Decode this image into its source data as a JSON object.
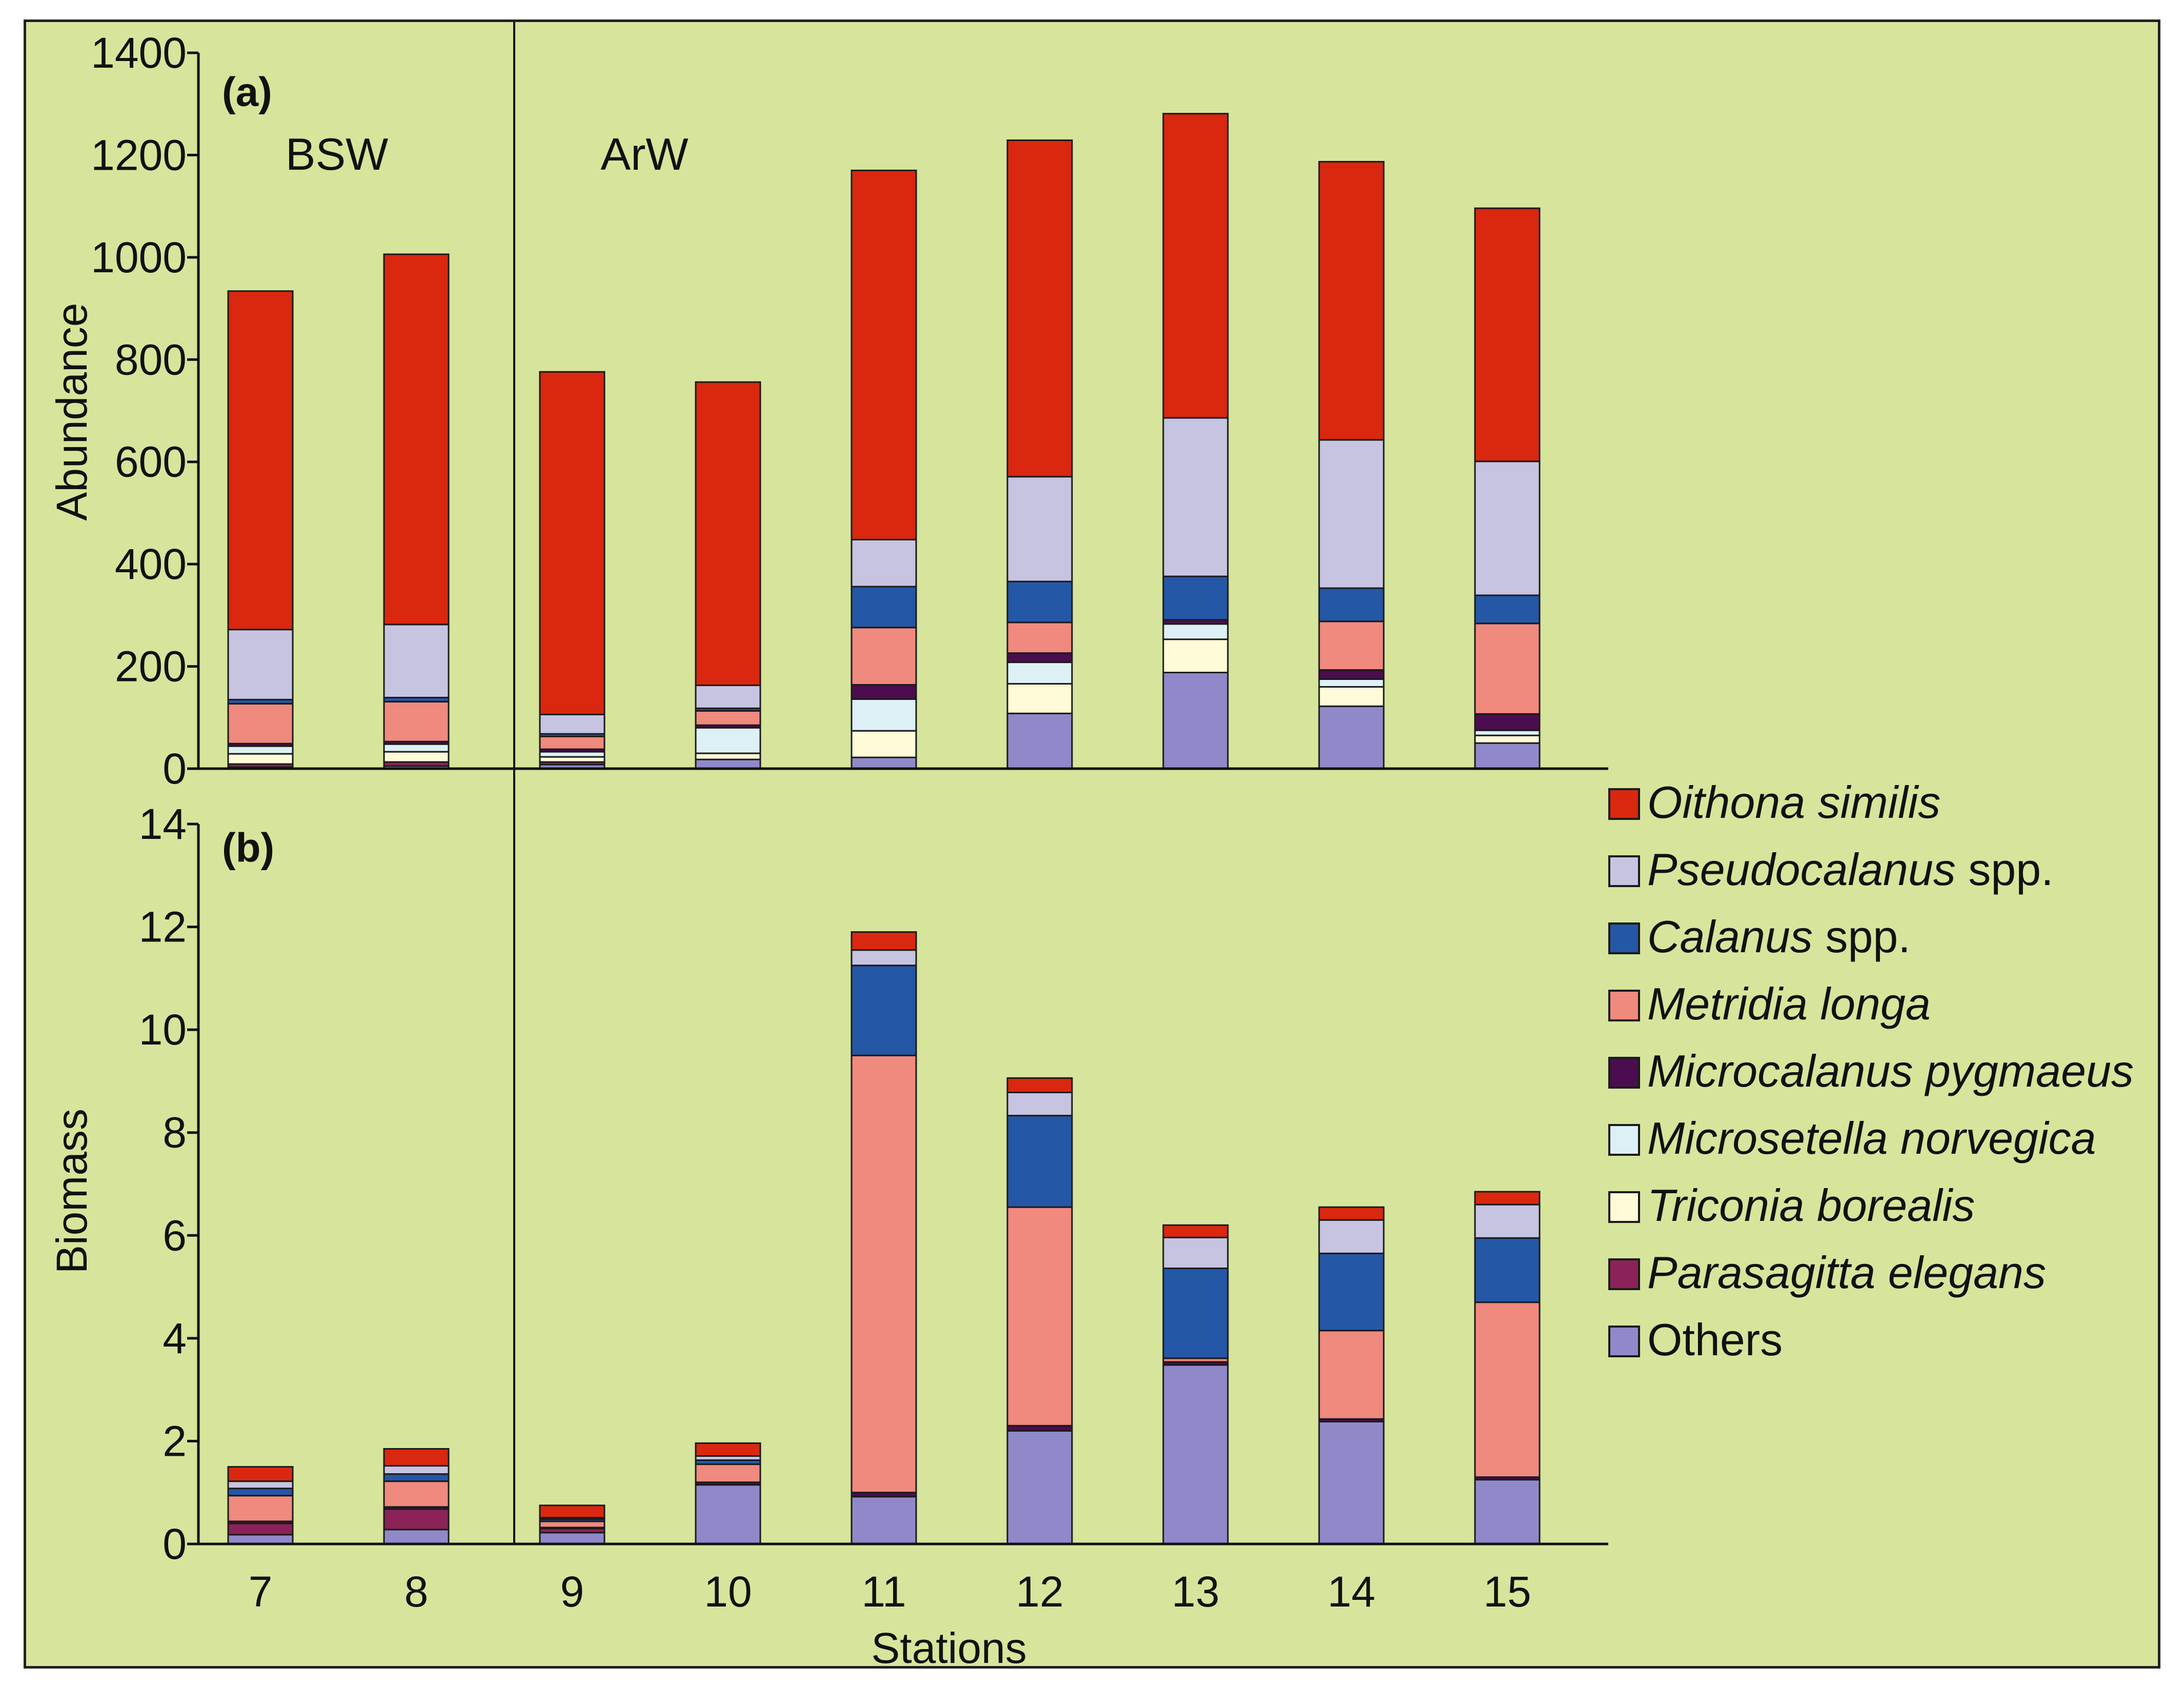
{
  "chart_data": [
    {
      "panel_label": "(a)",
      "type": "bar",
      "stacked": true,
      "ylabel": "Abundance",
      "ylim": [
        0,
        1400
      ],
      "yticks": [
        0,
        200,
        400,
        600,
        800,
        1000,
        1200,
        1400
      ],
      "categories": [
        "7",
        "8",
        "9",
        "10",
        "11",
        "12",
        "13",
        "14",
        "15"
      ],
      "regions": [
        {
          "label": "BSW",
          "stations": [
            "7",
            "8"
          ]
        },
        {
          "label": "ArW",
          "stations": [
            "9",
            "10",
            "11",
            "12",
            "13",
            "14",
            "15"
          ]
        }
      ],
      "series": [
        {
          "name": "Others",
          "values": [
            3,
            5,
            8,
            18,
            22,
            108,
            188,
            122,
            50
          ]
        },
        {
          "name": "Parasagitta elegans",
          "values": [
            6,
            8,
            5,
            0,
            0,
            0,
            0,
            0,
            0
          ]
        },
        {
          "name": "Triconia borealis",
          "values": [
            20,
            20,
            10,
            12,
            52,
            58,
            65,
            38,
            15
          ]
        },
        {
          "name": "Microsetella norvegica",
          "values": [
            15,
            15,
            10,
            50,
            62,
            42,
            30,
            15,
            10
          ]
        },
        {
          "name": "Microcalanus pygmaeus",
          "values": [
            5,
            5,
            5,
            5,
            28,
            18,
            8,
            18,
            32
          ]
        },
        {
          "name": "Metridia longa",
          "values": [
            78,
            78,
            25,
            28,
            112,
            60,
            0,
            95,
            177
          ]
        },
        {
          "name": "Calanus spp.",
          "values": [
            8,
            8,
            5,
            5,
            80,
            80,
            85,
            65,
            55
          ]
        },
        {
          "name": "Pseudocalanus spp.",
          "values": [
            137,
            143,
            38,
            45,
            92,
            205,
            310,
            290,
            262
          ]
        },
        {
          "name": "Oithona similis",
          "values": [
            662,
            724,
            670,
            593,
            722,
            658,
            595,
            544,
            495
          ]
        }
      ]
    },
    {
      "panel_label": "(b)",
      "type": "bar",
      "stacked": true,
      "ylabel": "Biomass",
      "xlabel": "Stations",
      "ylim": [
        0,
        14
      ],
      "yticks": [
        0,
        2,
        4,
        6,
        8,
        10,
        12,
        14
      ],
      "categories": [
        "7",
        "8",
        "9",
        "10",
        "11",
        "12",
        "13",
        "14",
        "15"
      ],
      "series": [
        {
          "name": "Others",
          "values": [
            0.18,
            0.28,
            0.22,
            1.15,
            0.92,
            2.2,
            3.48,
            2.38,
            1.25
          ]
        },
        {
          "name": "Parasagitta elegans",
          "values": [
            0.22,
            0.4,
            0.08,
            0,
            0,
            0,
            0,
            0,
            0
          ]
        },
        {
          "name": "Triconia borealis",
          "values": [
            0,
            0,
            0,
            0,
            0,
            0,
            0,
            0,
            0
          ]
        },
        {
          "name": "Microsetella norvegica",
          "values": [
            0,
            0,
            0,
            0,
            0,
            0,
            0,
            0,
            0
          ]
        },
        {
          "name": "Microcalanus pygmaeus",
          "values": [
            0.04,
            0.04,
            0.02,
            0.05,
            0.08,
            0.1,
            0.06,
            0.05,
            0.05
          ]
        },
        {
          "name": "Metridia longa",
          "values": [
            0.5,
            0.5,
            0.12,
            0.35,
            8.5,
            4.25,
            0.07,
            1.72,
            3.4
          ]
        },
        {
          "name": "Calanus spp.",
          "values": [
            0.14,
            0.14,
            0.04,
            0.08,
            1.75,
            1.78,
            1.75,
            1.5,
            1.25
          ]
        },
        {
          "name": "Pseudocalanus spp.",
          "values": [
            0.14,
            0.16,
            0.03,
            0.08,
            0.3,
            0.45,
            0.6,
            0.65,
            0.65
          ]
        },
        {
          "name": "Oithona similis",
          "values": [
            0.28,
            0.33,
            0.24,
            0.25,
            0.35,
            0.28,
            0.24,
            0.25,
            0.25
          ]
        }
      ]
    }
  ],
  "legend": [
    {
      "italic": "Oithona similis",
      "suffix": "",
      "color": "#d9280f"
    },
    {
      "italic": "Pseudocalanus",
      "suffix": " spp.",
      "color": "#c7c4e2"
    },
    {
      "italic": "Calanus",
      "suffix": " spp.",
      "color": "#2557a7"
    },
    {
      "italic": "Metridia longa",
      "suffix": "",
      "color": "#f0897e"
    },
    {
      "italic": "Microcalanus pygmaeus",
      "suffix": "",
      "color": "#4b0d4f"
    },
    {
      "italic": "Microsetella norvegica",
      "suffix": "",
      "color": "#ddf0f5"
    },
    {
      "italic": "Triconia borealis",
      "suffix": "",
      "color": "#fffbd9"
    },
    {
      "italic": "Parasagitta elegans",
      "suffix": "",
      "color": "#8c2358"
    },
    {
      "italic": "",
      "suffix": "Others",
      "color": "#9089c9"
    }
  ],
  "series_colors": {
    "Oithona similis": "#d9280f",
    "Pseudocalanus spp.": "#c7c4e2",
    "Calanus spp.": "#2557a7",
    "Metridia longa": "#f0897e",
    "Microcalanus pygmaeus": "#4b0d4f",
    "Microsetella norvegica": "#ddf0f5",
    "Triconia borealis": "#fffbd9",
    "Parasagitta elegans": "#8c2358",
    "Others": "#9089c9"
  },
  "colors": {
    "background": "#d6e59b",
    "axis": "#111111",
    "bar_stroke": "#1a1a1a"
  }
}
